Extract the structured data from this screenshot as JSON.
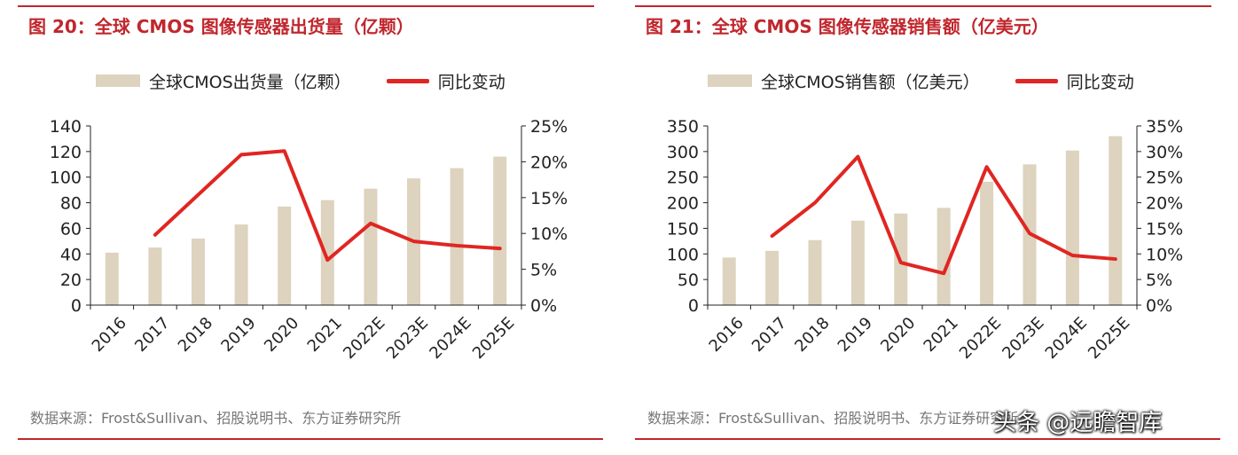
{
  "panels": [
    {
      "title": "图 20：全球 CMOS 图像传感器出货量（亿颗）",
      "legend_bar": "全球CMOS出货量（亿颗）",
      "legend_line": "同比变动",
      "source": "数据来源：Frost&Sullivan、招股说明书、东方证券研究所"
    },
    {
      "title": "图 21：全球 CMOS 图像传感器销售额（亿美元）",
      "legend_bar": "全球CMOS销售额（亿美元）",
      "legend_line": "同比变动",
      "source": "数据来源：Frost&Sullivan、招股说明书、东方证券研究所"
    }
  ],
  "colors": {
    "bar": "#ddd3be",
    "line": "#e02622",
    "title": "#c0272d",
    "axis": "#222222"
  },
  "watermark": "头条 @远瞻智库",
  "chart_data": [
    {
      "type": "bar+line",
      "categories": [
        "2016",
        "2017",
        "2018",
        "2019",
        "2020",
        "2021",
        "2022E",
        "2023E",
        "2024E",
        "2025E"
      ],
      "series": [
        {
          "name": "全球CMOS出货量（亿颗）",
          "type": "bar",
          "axis": "left",
          "values": [
            41,
            45,
            52,
            63,
            77,
            82,
            91,
            99,
            107,
            116
          ]
        },
        {
          "name": "同比变动",
          "type": "line",
          "axis": "right",
          "values": [
            null,
            0.098,
            null,
            0.21,
            0.215,
            0.063,
            0.114,
            0.089,
            0.083,
            0.079
          ]
        }
      ],
      "ylim_left": [
        0,
        140
      ],
      "yticks_left": [
        "0",
        "20",
        "40",
        "60",
        "80",
        "100",
        "120",
        "140"
      ],
      "ylim_right": [
        0,
        0.25
      ],
      "yticks_right": [
        "0%",
        "5%",
        "10%",
        "15%",
        "20%",
        "25%"
      ],
      "legend": "top",
      "grid": false
    },
    {
      "type": "bar+line",
      "categories": [
        "2016",
        "2017",
        "2018",
        "2019",
        "2020",
        "2021",
        "2022E",
        "2023E",
        "2024E",
        "2025E"
      ],
      "series": [
        {
          "name": "全球CMOS销售额（亿美元）",
          "type": "bar",
          "axis": "left",
          "values": [
            93,
            106,
            127,
            165,
            179,
            190,
            241,
            275,
            302,
            330
          ]
        },
        {
          "name": "同比变动",
          "type": "line",
          "axis": "right",
          "values": [
            null,
            0.135,
            0.2,
            0.29,
            0.083,
            0.062,
            0.27,
            0.14,
            0.097,
            0.09
          ]
        }
      ],
      "ylim_left": [
        0,
        350
      ],
      "yticks_left": [
        "0",
        "50",
        "100",
        "150",
        "200",
        "250",
        "300",
        "350"
      ],
      "ylim_right": [
        0,
        0.35
      ],
      "yticks_right": [
        "0%",
        "5%",
        "10%",
        "15%",
        "20%",
        "25%",
        "30%",
        "35%"
      ],
      "legend": "top",
      "grid": false
    }
  ]
}
